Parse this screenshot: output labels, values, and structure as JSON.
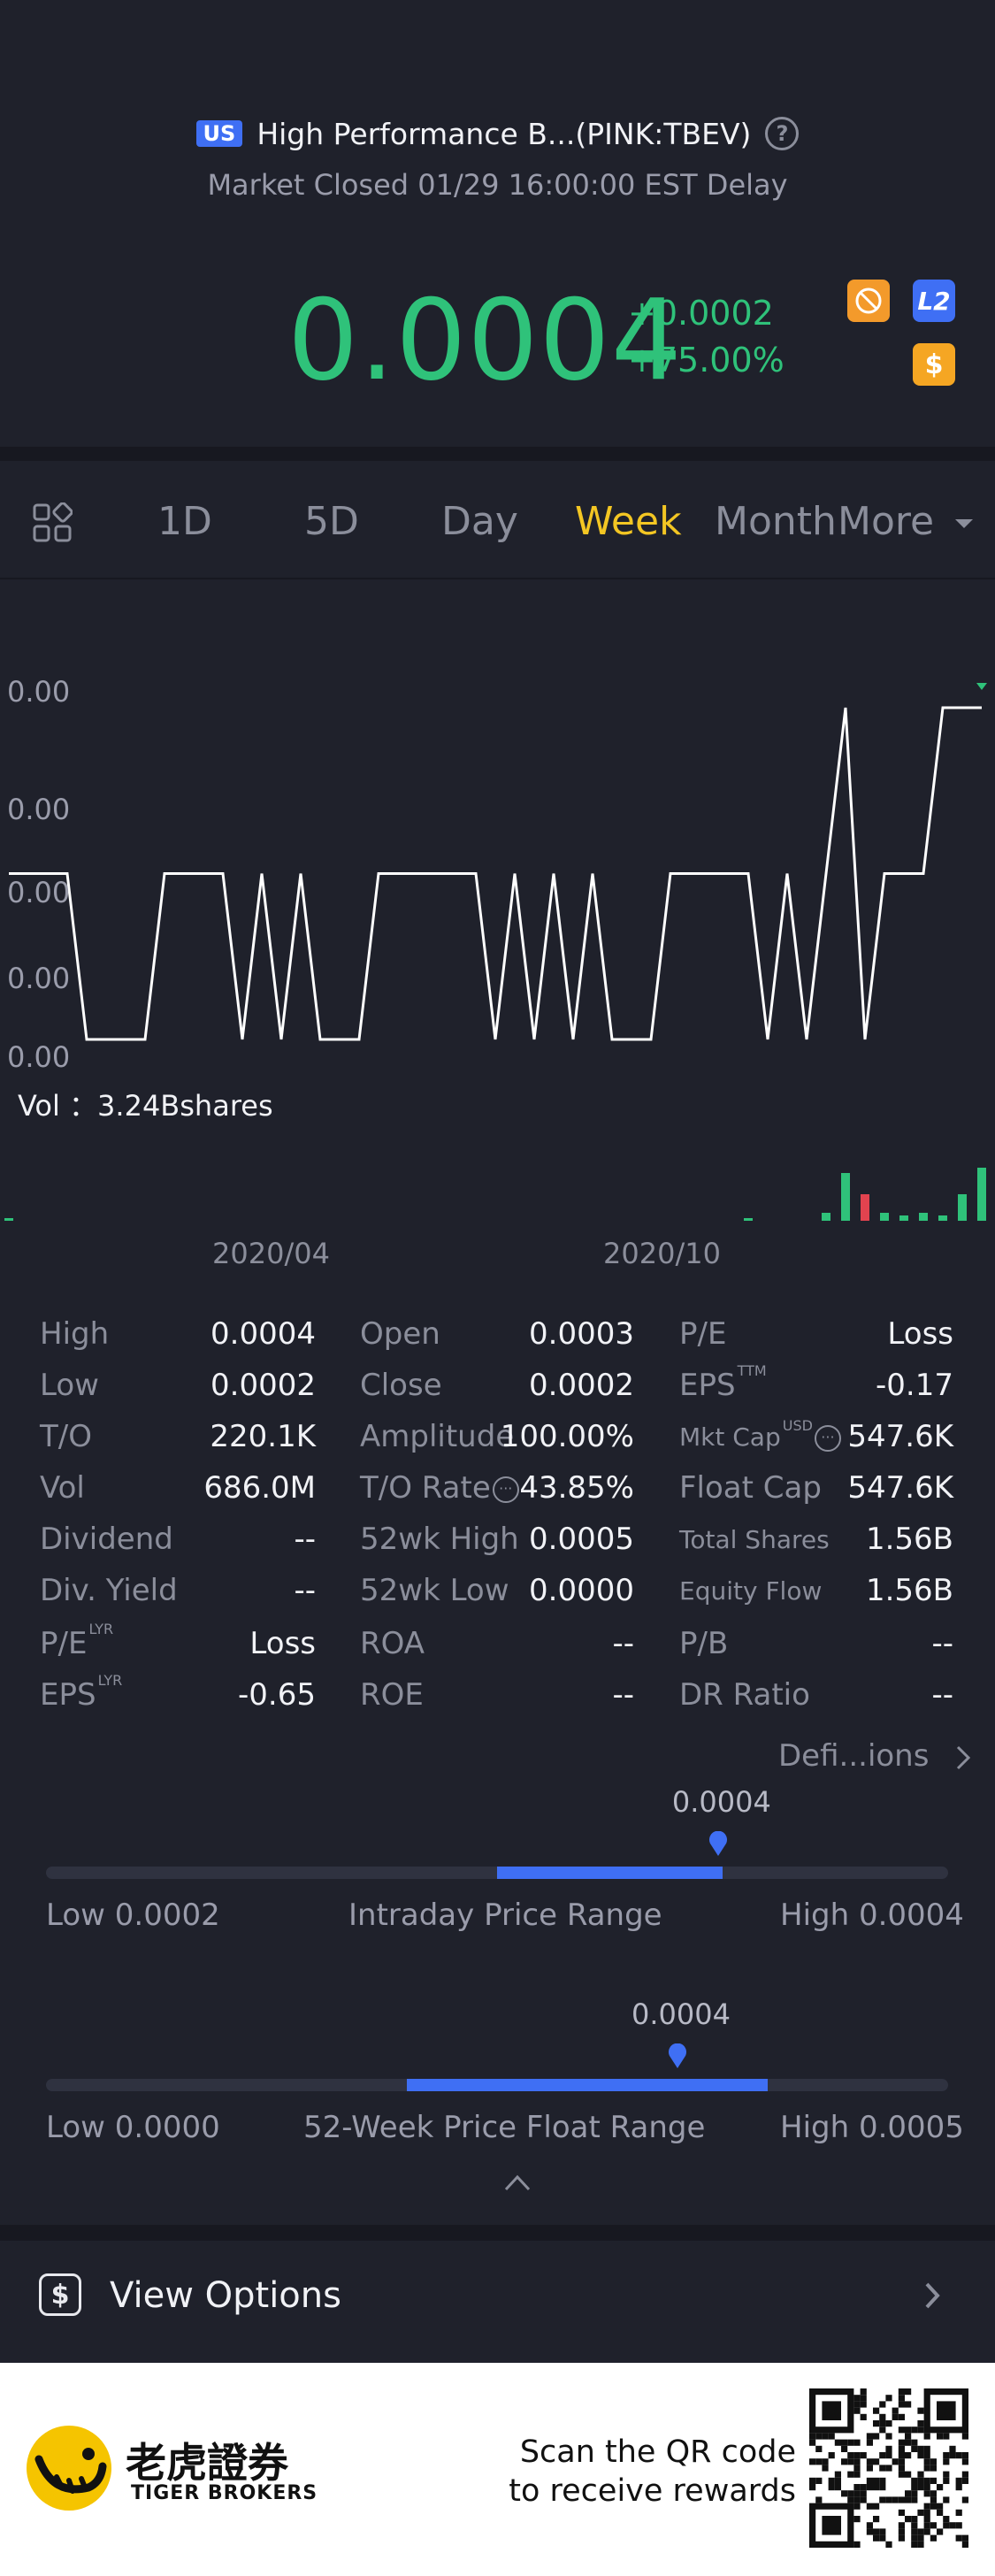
{
  "header": {
    "market_badge": "US",
    "stock_title": "High Performance B...(PINK:TBEV)",
    "market_status": "Market Closed 01/29 16:00:00 EST Delay",
    "price": "0.0004",
    "change_abs": "+0.0002",
    "change_pct": "+75.00%",
    "badges": {
      "l2": "L2",
      "dollar": "$"
    },
    "icons": [
      "no-short-icon",
      "l2-icon",
      "dollar-icon",
      "help-icon"
    ]
  },
  "tabs": {
    "items": [
      "1D",
      "5D",
      "Day",
      "Week",
      "Month",
      "More"
    ],
    "active": "Week"
  },
  "chart_data": {
    "type": "line",
    "y_tick_labels": [
      "0.00",
      "0.00",
      "0.00",
      "0.00",
      "0.00"
    ],
    "x_tick_labels": [
      "2020/04",
      "2020/10"
    ],
    "volume_label": "Vol ：3.24Bshares",
    "price_series": [
      0.0003,
      0.0003,
      0.0003,
      0.0003,
      0.0002,
      0.0002,
      0.0002,
      0.0002,
      0.0003,
      0.0003,
      0.0003,
      0.0003,
      0.0002,
      0.0003,
      0.0002,
      0.0003,
      0.0002,
      0.0002,
      0.0002,
      0.0003,
      0.0003,
      0.0003,
      0.0003,
      0.0003,
      0.0003,
      0.0002,
      0.0003,
      0.0002,
      0.0003,
      0.0002,
      0.0003,
      0.0002,
      0.0002,
      0.0002,
      0.0003,
      0.0003,
      0.0003,
      0.0003,
      0.0003,
      0.0002,
      0.0003,
      0.0002,
      0.0003,
      0.0004,
      0.0002,
      0.0003,
      0.0003,
      0.0003,
      0.0004,
      0.0004,
      0.0004
    ],
    "volume_series": [
      0.02,
      0,
      0,
      0,
      0,
      0,
      0,
      0,
      0,
      0,
      0,
      0,
      0,
      0,
      0,
      0,
      0,
      0,
      0,
      0,
      0,
      0,
      0,
      0,
      0,
      0,
      0,
      0,
      0,
      0,
      0,
      0,
      0,
      0,
      0,
      0,
      0,
      0,
      0.01,
      0,
      0,
      0,
      0.15,
      0.9,
      0.5,
      0.15,
      0.1,
      0.15,
      0.1,
      0.5,
      1.0
    ],
    "volume_up": [
      true,
      true,
      true,
      true,
      true,
      true,
      true,
      true,
      true,
      true,
      true,
      true,
      true,
      true,
      true,
      true,
      true,
      true,
      true,
      true,
      true,
      true,
      true,
      true,
      true,
      true,
      true,
      true,
      true,
      true,
      true,
      true,
      true,
      true,
      true,
      true,
      true,
      true,
      true,
      true,
      true,
      true,
      true,
      true,
      false,
      true,
      true,
      true,
      true,
      true,
      true
    ],
    "colors": {
      "line": "#ffffff",
      "up": "#2fc27a",
      "down": "#e2434f"
    }
  },
  "stats": {
    "col1": [
      {
        "label": "High",
        "value": "0.0004"
      },
      {
        "label": "Low",
        "value": "0.0002"
      },
      {
        "label": "T/O",
        "value": "220.1K"
      },
      {
        "label": "Vol",
        "value": "686.0M"
      },
      {
        "label": "Dividend",
        "value": "--"
      },
      {
        "label": "Div. Yield",
        "value": "--"
      },
      {
        "label": "P/E",
        "sup": "LYR",
        "value": "Loss"
      },
      {
        "label": "EPS",
        "sup": "LYR",
        "value": "-0.65"
      }
    ],
    "col2": [
      {
        "label": "Open",
        "value": "0.0003"
      },
      {
        "label": "Close",
        "value": "0.0002"
      },
      {
        "label": "Amplitude",
        "value": "100.00%"
      },
      {
        "label": "T/O Rate",
        "value": "43.85%"
      },
      {
        "label": "52wk High",
        "value": "0.0005"
      },
      {
        "label": "52wk Low",
        "value": "0.0000"
      },
      {
        "label": "ROA",
        "value": "--"
      },
      {
        "label": "ROE",
        "value": "--"
      }
    ],
    "col3": [
      {
        "label": "P/E",
        "value": "Loss"
      },
      {
        "label": "EPS",
        "sup": "TTM",
        "value": "-0.17"
      },
      {
        "label": "Mkt Cap",
        "sup": "USD",
        "value": "547.6K"
      },
      {
        "label": "Float Cap",
        "value": "547.6K"
      },
      {
        "label": "Total Shares",
        "value": "1.56B"
      },
      {
        "label": "Equity Flow",
        "value": "1.56B"
      },
      {
        "label": "P/B",
        "value": "--"
      },
      {
        "label": "DR Ratio",
        "value": "--"
      }
    ],
    "definitions_link": "Defi...ions"
  },
  "ranges": {
    "intraday": {
      "current": "0.0004",
      "title": "Intraday Price Range",
      "low": "Low 0.0002",
      "high": "High 0.0004",
      "fill_start": 0.5,
      "fill_end": 0.75,
      "marker": 0.745
    },
    "week52": {
      "current": "0.0004",
      "title": "52-Week Price Float Range",
      "low": "Low 0.0000",
      "high": "High 0.0005",
      "fill_start": 0.4,
      "fill_end": 0.8,
      "marker": 0.7
    }
  },
  "options": {
    "label": "View Options"
  },
  "footer": {
    "brand_cn": "老虎證券",
    "brand_en": "TIGER BROKERS",
    "scan_line1": "Scan the QR code",
    "scan_line2": "to receive rewards"
  }
}
